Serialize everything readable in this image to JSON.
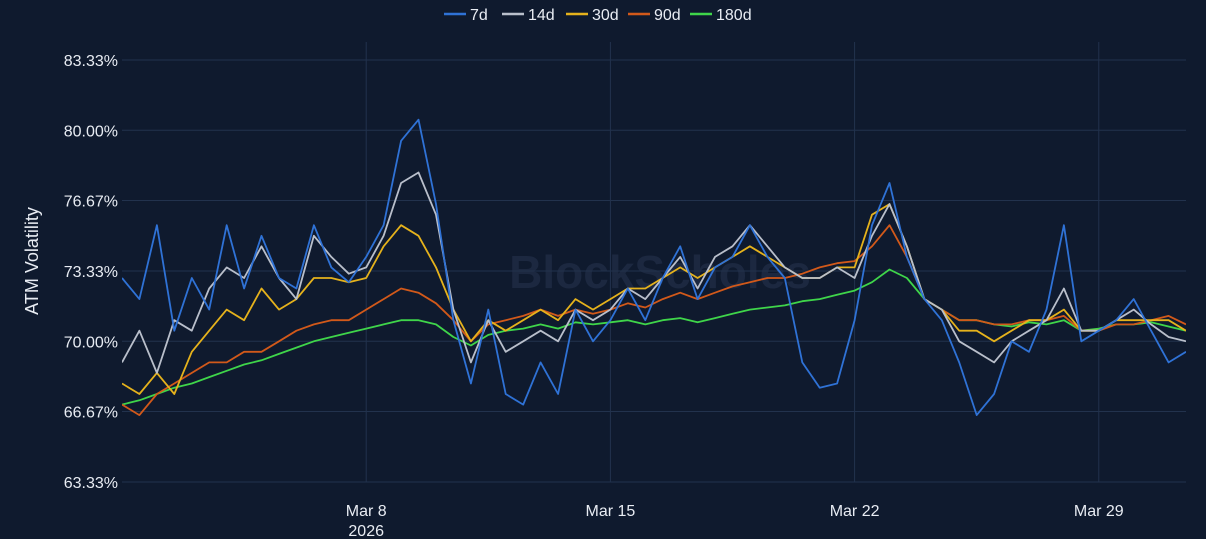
{
  "watermark": "BlockScholes",
  "colors": {
    "background": "#0f1a2e",
    "grid": "#22324d",
    "text": "#e8ecf3"
  },
  "chart_data": {
    "type": "line",
    "ylabel": "ATM Volatility",
    "yticks": [
      "63.33%",
      "66.67%",
      "70.00%",
      "73.33%",
      "76.67%",
      "80.00%",
      "83.33%"
    ],
    "ylim": [
      63.33,
      83.33
    ],
    "xlim": [
      "2026-03-01",
      "2026-03-31T12:00"
    ],
    "xticks": [
      {
        "date": "2026-03-08",
        "label": "Mar 8",
        "sublabel": "2026"
      },
      {
        "date": "2026-03-15",
        "label": "Mar 15",
        "sublabel": ""
      },
      {
        "date": "2026-03-22",
        "label": "Mar 22",
        "sublabel": ""
      },
      {
        "date": "2026-03-29",
        "label": "Mar 29",
        "sublabel": ""
      }
    ],
    "grid": true,
    "legend_position": "top-center",
    "series": [
      {
        "name": "7d",
        "color": "#2f72d6",
        "x": [
          "2026-03-01",
          "2026-03-01T12:00",
          "2026-03-02",
          "2026-03-02T12:00",
          "2026-03-03",
          "2026-03-03T12:00",
          "2026-03-04",
          "2026-03-04T12:00",
          "2026-03-05",
          "2026-03-05T12:00",
          "2026-03-06",
          "2026-03-06T12:00",
          "2026-03-07",
          "2026-03-07T12:00",
          "2026-03-08",
          "2026-03-08T12:00",
          "2026-03-09",
          "2026-03-09T12:00",
          "2026-03-10",
          "2026-03-10T12:00",
          "2026-03-11",
          "2026-03-11T12:00",
          "2026-03-12",
          "2026-03-12T12:00",
          "2026-03-13",
          "2026-03-13T12:00",
          "2026-03-14",
          "2026-03-14T12:00",
          "2026-03-15",
          "2026-03-15T12:00",
          "2026-03-16",
          "2026-03-16T12:00",
          "2026-03-17",
          "2026-03-17T12:00",
          "2026-03-18",
          "2026-03-18T12:00",
          "2026-03-19",
          "2026-03-19T12:00",
          "2026-03-20",
          "2026-03-20T12:00",
          "2026-03-21",
          "2026-03-21T12:00",
          "2026-03-22",
          "2026-03-22T12:00",
          "2026-03-23",
          "2026-03-23T12:00",
          "2026-03-24",
          "2026-03-24T12:00",
          "2026-03-25",
          "2026-03-25T12:00",
          "2026-03-26",
          "2026-03-26T12:00",
          "2026-03-27",
          "2026-03-27T12:00",
          "2026-03-28",
          "2026-03-28T12:00",
          "2026-03-29",
          "2026-03-29T12:00",
          "2026-03-30",
          "2026-03-30T12:00",
          "2026-03-31",
          "2026-03-31T12:00"
        ],
        "values": [
          73.0,
          72.0,
          75.5,
          70.5,
          73.0,
          71.5,
          75.5,
          72.5,
          75.0,
          73.0,
          72.5,
          75.5,
          73.5,
          72.8,
          74.0,
          75.5,
          79.5,
          80.5,
          76.5,
          71.0,
          68.0,
          71.5,
          67.5,
          67.0,
          69.0,
          67.5,
          71.5,
          70.0,
          71.0,
          72.5,
          71.0,
          73.0,
          74.5,
          72.0,
          73.5,
          74.0,
          75.5,
          74.0,
          73.0,
          69.0,
          67.8,
          68.0,
          71.0,
          75.5,
          77.5,
          74.0,
          72.0,
          71.0,
          69.0,
          66.5,
          67.5,
          70.0,
          69.5,
          71.5,
          75.5,
          70.0,
          70.5,
          71.0,
          72.0,
          70.5,
          69.0,
          69.5
        ]
      },
      {
        "name": "14d",
        "color": "#b9bfcb",
        "x": [
          "2026-03-01",
          "2026-03-01T12:00",
          "2026-03-02",
          "2026-03-02T12:00",
          "2026-03-03",
          "2026-03-03T12:00",
          "2026-03-04",
          "2026-03-04T12:00",
          "2026-03-05",
          "2026-03-05T12:00",
          "2026-03-06",
          "2026-03-06T12:00",
          "2026-03-07",
          "2026-03-07T12:00",
          "2026-03-08",
          "2026-03-08T12:00",
          "2026-03-09",
          "2026-03-09T12:00",
          "2026-03-10",
          "2026-03-10T12:00",
          "2026-03-11",
          "2026-03-11T12:00",
          "2026-03-12",
          "2026-03-12T12:00",
          "2026-03-13",
          "2026-03-13T12:00",
          "2026-03-14",
          "2026-03-14T12:00",
          "2026-03-15",
          "2026-03-15T12:00",
          "2026-03-16",
          "2026-03-16T12:00",
          "2026-03-17",
          "2026-03-17T12:00",
          "2026-03-18",
          "2026-03-18T12:00",
          "2026-03-19",
          "2026-03-19T12:00",
          "2026-03-20",
          "2026-03-20T12:00",
          "2026-03-21",
          "2026-03-21T12:00",
          "2026-03-22",
          "2026-03-22T12:00",
          "2026-03-23",
          "2026-03-23T12:00",
          "2026-03-24",
          "2026-03-24T12:00",
          "2026-03-25",
          "2026-03-25T12:00",
          "2026-03-26",
          "2026-03-26T12:00",
          "2026-03-27",
          "2026-03-27T12:00",
          "2026-03-28",
          "2026-03-28T12:00",
          "2026-03-29",
          "2026-03-29T12:00",
          "2026-03-30",
          "2026-03-30T12:00",
          "2026-03-31",
          "2026-03-31T12:00"
        ],
        "values": [
          69.0,
          70.5,
          68.5,
          71.0,
          70.5,
          72.5,
          73.5,
          73.0,
          74.5,
          73.0,
          72.0,
          75.0,
          74.0,
          73.2,
          73.5,
          75.0,
          77.5,
          78.0,
          76.0,
          71.5,
          69.0,
          71.0,
          69.5,
          70.0,
          70.5,
          70.0,
          71.5,
          71.0,
          71.5,
          72.5,
          72.0,
          73.0,
          74.0,
          72.5,
          74.0,
          74.5,
          75.5,
          74.5,
          73.5,
          73.0,
          73.0,
          73.5,
          73.0,
          75.0,
          76.5,
          74.5,
          72.0,
          71.5,
          70.0,
          69.5,
          69.0,
          70.0,
          70.5,
          71.0,
          72.5,
          70.5,
          70.5,
          71.0,
          71.5,
          70.8,
          70.2,
          70.0
        ]
      },
      {
        "name": "30d",
        "color": "#e5b21c",
        "x": [
          "2026-03-01",
          "2026-03-01T12:00",
          "2026-03-02",
          "2026-03-02T12:00",
          "2026-03-03",
          "2026-03-03T12:00",
          "2026-03-04",
          "2026-03-04T12:00",
          "2026-03-05",
          "2026-03-05T12:00",
          "2026-03-06",
          "2026-03-06T12:00",
          "2026-03-07",
          "2026-03-07T12:00",
          "2026-03-08",
          "2026-03-08T12:00",
          "2026-03-09",
          "2026-03-09T12:00",
          "2026-03-10",
          "2026-03-10T12:00",
          "2026-03-11",
          "2026-03-11T12:00",
          "2026-03-12",
          "2026-03-12T12:00",
          "2026-03-13",
          "2026-03-13T12:00",
          "2026-03-14",
          "2026-03-14T12:00",
          "2026-03-15",
          "2026-03-15T12:00",
          "2026-03-16",
          "2026-03-16T12:00",
          "2026-03-17",
          "2026-03-17T12:00",
          "2026-03-18",
          "2026-03-18T12:00",
          "2026-03-19",
          "2026-03-19T12:00",
          "2026-03-20",
          "2026-03-20T12:00",
          "2026-03-21",
          "2026-03-21T12:00",
          "2026-03-22",
          "2026-03-22T12:00",
          "2026-03-23",
          "2026-03-23T12:00",
          "2026-03-24",
          "2026-03-24T12:00",
          "2026-03-25",
          "2026-03-25T12:00",
          "2026-03-26",
          "2026-03-26T12:00",
          "2026-03-27",
          "2026-03-27T12:00",
          "2026-03-28",
          "2026-03-28T12:00",
          "2026-03-29",
          "2026-03-29T12:00",
          "2026-03-30",
          "2026-03-30T12:00",
          "2026-03-31",
          "2026-03-31T12:00"
        ],
        "values": [
          68.0,
          67.5,
          68.5,
          67.5,
          69.5,
          70.5,
          71.5,
          71.0,
          72.5,
          71.5,
          72.0,
          73.0,
          73.0,
          72.8,
          73.0,
          74.5,
          75.5,
          75.0,
          73.5,
          71.5,
          70.0,
          71.0,
          70.5,
          71.0,
          71.5,
          71.0,
          72.0,
          71.5,
          72.0,
          72.5,
          72.5,
          73.0,
          73.5,
          73.0,
          73.5,
          74.0,
          74.5,
          74.0,
          73.5,
          73.0,
          73.0,
          73.5,
          73.5,
          76.0,
          76.5,
          74.5,
          72.0,
          71.5,
          70.5,
          70.5,
          70.0,
          70.5,
          71.0,
          71.0,
          71.5,
          70.5,
          70.5,
          71.0,
          71.0,
          71.0,
          71.0,
          70.5
        ]
      },
      {
        "name": "90d",
        "color": "#d2591a",
        "x": [
          "2026-03-01",
          "2026-03-01T12:00",
          "2026-03-02",
          "2026-03-02T12:00",
          "2026-03-03",
          "2026-03-03T12:00",
          "2026-03-04",
          "2026-03-04T12:00",
          "2026-03-05",
          "2026-03-05T12:00",
          "2026-03-06",
          "2026-03-06T12:00",
          "2026-03-07",
          "2026-03-07T12:00",
          "2026-03-08",
          "2026-03-08T12:00",
          "2026-03-09",
          "2026-03-09T12:00",
          "2026-03-10",
          "2026-03-10T12:00",
          "2026-03-11",
          "2026-03-11T12:00",
          "2026-03-12",
          "2026-03-12T12:00",
          "2026-03-13",
          "2026-03-13T12:00",
          "2026-03-14",
          "2026-03-14T12:00",
          "2026-03-15",
          "2026-03-15T12:00",
          "2026-03-16",
          "2026-03-16T12:00",
          "2026-03-17",
          "2026-03-17T12:00",
          "2026-03-18",
          "2026-03-18T12:00",
          "2026-03-19",
          "2026-03-19T12:00",
          "2026-03-20",
          "2026-03-20T12:00",
          "2026-03-21",
          "2026-03-21T12:00",
          "2026-03-22",
          "2026-03-22T12:00",
          "2026-03-23",
          "2026-03-23T12:00",
          "2026-03-24",
          "2026-03-24T12:00",
          "2026-03-25",
          "2026-03-25T12:00",
          "2026-03-26",
          "2026-03-26T12:00",
          "2026-03-27",
          "2026-03-27T12:00",
          "2026-03-28",
          "2026-03-28T12:00",
          "2026-03-29",
          "2026-03-29T12:00",
          "2026-03-30",
          "2026-03-30T12:00",
          "2026-03-31",
          "2026-03-31T12:00"
        ],
        "values": [
          67.0,
          66.5,
          67.5,
          68.0,
          68.5,
          69.0,
          69.0,
          69.5,
          69.5,
          70.0,
          70.5,
          70.8,
          71.0,
          71.0,
          71.5,
          72.0,
          72.5,
          72.3,
          71.8,
          71.0,
          70.0,
          70.8,
          71.0,
          71.2,
          71.5,
          71.2,
          71.5,
          71.3,
          71.5,
          71.8,
          71.6,
          72.0,
          72.3,
          72.0,
          72.3,
          72.6,
          72.8,
          73.0,
          73.0,
          73.2,
          73.5,
          73.7,
          73.8,
          74.5,
          75.5,
          74.0,
          72.0,
          71.5,
          71.0,
          71.0,
          70.8,
          70.8,
          71.0,
          71.0,
          71.2,
          70.5,
          70.5,
          70.8,
          70.8,
          71.0,
          71.2,
          70.8
        ]
      },
      {
        "name": "180d",
        "color": "#3fd54a",
        "x": [
          "2026-03-01",
          "2026-03-01T12:00",
          "2026-03-02",
          "2026-03-02T12:00",
          "2026-03-03",
          "2026-03-03T12:00",
          "2026-03-04",
          "2026-03-04T12:00",
          "2026-03-05",
          "2026-03-05T12:00",
          "2026-03-06",
          "2026-03-06T12:00",
          "2026-03-07",
          "2026-03-07T12:00",
          "2026-03-08",
          "2026-03-08T12:00",
          "2026-03-09",
          "2026-03-09T12:00",
          "2026-03-10",
          "2026-03-10T12:00",
          "2026-03-11",
          "2026-03-11T12:00",
          "2026-03-12",
          "2026-03-12T12:00",
          "2026-03-13",
          "2026-03-13T12:00",
          "2026-03-14",
          "2026-03-14T12:00",
          "2026-03-15",
          "2026-03-15T12:00",
          "2026-03-16",
          "2026-03-16T12:00",
          "2026-03-17",
          "2026-03-17T12:00",
          "2026-03-18",
          "2026-03-18T12:00",
          "2026-03-19",
          "2026-03-19T12:00",
          "2026-03-20",
          "2026-03-20T12:00",
          "2026-03-21",
          "2026-03-21T12:00",
          "2026-03-22",
          "2026-03-22T12:00",
          "2026-03-23",
          "2026-03-23T12:00",
          "2026-03-24",
          "2026-03-24T12:00",
          "2026-03-25",
          "2026-03-25T12:00",
          "2026-03-26",
          "2026-03-26T12:00",
          "2026-03-27",
          "2026-03-27T12:00",
          "2026-03-28",
          "2026-03-28T12:00",
          "2026-03-29",
          "2026-03-29T12:00",
          "2026-03-30",
          "2026-03-30T12:00",
          "2026-03-31",
          "2026-03-31T12:00"
        ],
        "values": [
          67.0,
          67.2,
          67.5,
          67.8,
          68.0,
          68.3,
          68.6,
          68.9,
          69.1,
          69.4,
          69.7,
          70.0,
          70.2,
          70.4,
          70.6,
          70.8,
          71.0,
          71.0,
          70.8,
          70.2,
          69.8,
          70.3,
          70.5,
          70.6,
          70.8,
          70.6,
          70.9,
          70.8,
          70.9,
          71.0,
          70.8,
          71.0,
          71.1,
          70.9,
          71.1,
          71.3,
          71.5,
          71.6,
          71.7,
          71.9,
          72.0,
          72.2,
          72.4,
          72.8,
          73.4,
          73.0,
          72.0,
          71.5,
          71.0,
          71.0,
          70.8,
          70.7,
          70.9,
          70.8,
          71.0,
          70.5,
          70.6,
          70.8,
          70.8,
          70.9,
          70.7,
          70.5
        ]
      }
    ]
  }
}
